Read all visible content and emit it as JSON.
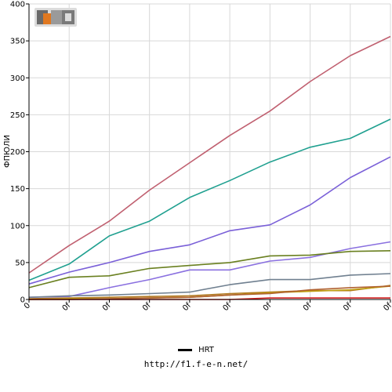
{
  "chart_data": {
    "type": "line",
    "ylabel": "ФПЮЛИ",
    "ylim": [
      0,
      400
    ],
    "yticks": [
      "0",
      "50",
      "100",
      "150",
      "200",
      "250",
      "300",
      "350",
      "400"
    ],
    "categories": [
      "0",
      "0f",
      "0f",
      "0f",
      "0f",
      "0f",
      "0f",
      "0f",
      "0f",
      "0f"
    ],
    "grid": true,
    "series": [
      {
        "color": "#c06070",
        "values": [
          36,
          73,
          106,
          148,
          185,
          222,
          255,
          295,
          330,
          356
        ]
      },
      {
        "color": "#20a090",
        "values": [
          26,
          48,
          86,
          106,
          138,
          161,
          186,
          206,
          218,
          244
        ]
      },
      {
        "color": "#7a60d8",
        "values": [
          21,
          37,
          50,
          65,
          74,
          93,
          101,
          128,
          165,
          193
        ]
      },
      {
        "color": "#8a70e0",
        "values": [
          3,
          4,
          16,
          27,
          40,
          40,
          52,
          57,
          69,
          78
        ]
      },
      {
        "color": "#6a8020",
        "values": [
          16,
          30,
          32,
          42,
          46,
          50,
          59,
          60,
          65,
          66
        ]
      },
      {
        "color": "#708090",
        "values": [
          3,
          5,
          6,
          8,
          10,
          20,
          27,
          27,
          33,
          35
        ]
      },
      {
        "color": "#b07820",
        "values": [
          1,
          2,
          3,
          4,
          5,
          8,
          10,
          12,
          12,
          19
        ]
      },
      {
        "color": "#c0a010",
        "values": [
          0,
          1,
          1,
          2,
          3,
          6,
          9,
          11,
          13,
          18
        ]
      },
      {
        "color": "#b06030",
        "values": [
          0,
          0,
          1,
          2,
          3,
          6,
          8,
          13,
          16,
          18
        ]
      },
      {
        "color": "#d02020",
        "values": [
          0,
          0,
          0,
          0,
          0,
          0,
          2,
          2,
          2,
          2
        ]
      }
    ]
  },
  "legend": {
    "label": "HRT",
    "color": "#000000"
  },
  "logo": {
    "text": "F1EN"
  },
  "footer": {
    "url": "http://f1.f-e-n.net/"
  }
}
